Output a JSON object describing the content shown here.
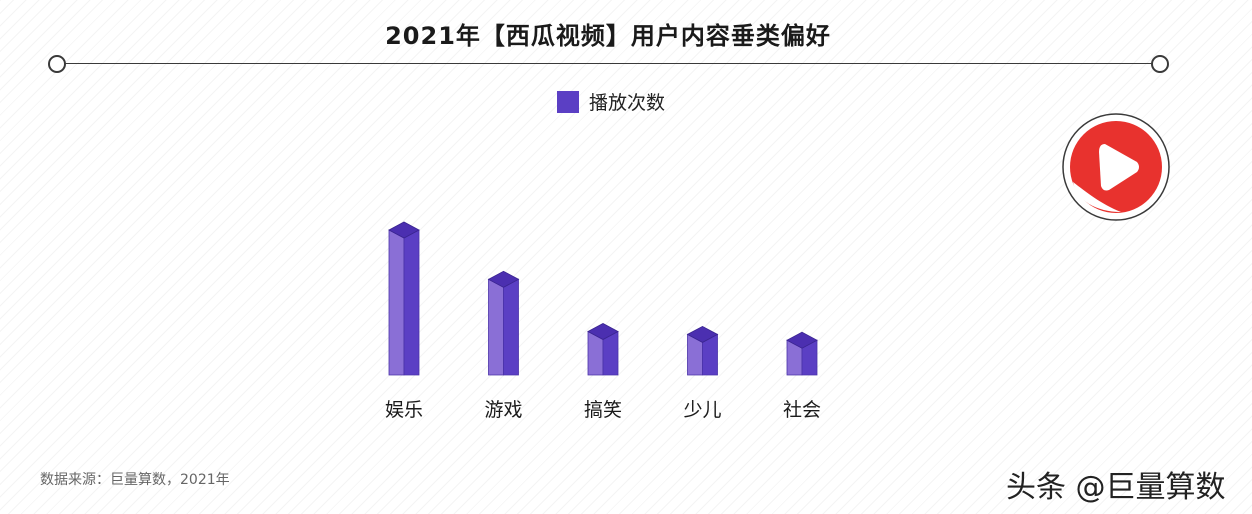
{
  "header": {
    "title": "2021年【西瓜视频】用户内容垂类偏好"
  },
  "legend": {
    "label": "播放次数",
    "color": "#5b3fc4"
  },
  "chart_data": {
    "type": "bar",
    "title": "2021年【西瓜视频】用户内容垂类偏好",
    "categories": [
      "娱乐",
      "游戏",
      "搞笑",
      "少儿",
      "社会"
    ],
    "series": [
      {
        "name": "播放次数",
        "values": [
          100,
          66,
          30,
          28,
          24
        ],
        "color": "#5b3fc4"
      }
    ],
    "ylim": [
      0,
      100
    ],
    "grid": false,
    "legend_position": "top-center",
    "xlabel": "",
    "ylabel": ""
  },
  "footer": {
    "source": "数据来源：巨量算数，2021年",
    "watermark": "头条 @巨量算数"
  },
  "logo": {
    "icon": "xigua-video-play-icon",
    "color": "#e8322e"
  }
}
